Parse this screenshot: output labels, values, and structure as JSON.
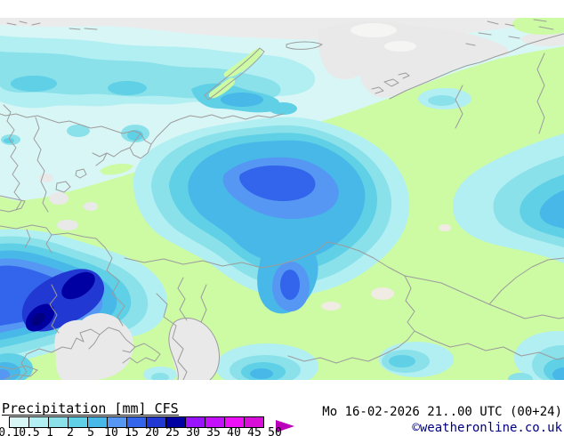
{
  "legend": {
    "title": "Precipitation [mm] CFS",
    "parameter": "Precipitation",
    "unit": "mm",
    "model": "CFS",
    "tick_labels": [
      "0.1",
      "0.5",
      "1",
      "2",
      "5",
      "10",
      "15",
      "20",
      "25",
      "30",
      "35",
      "40",
      "45",
      "50"
    ],
    "segment_colors": [
      "#D9F6F6",
      "#B2EFF2",
      "#8AE1EA",
      "#5FD0E6",
      "#47B8E8",
      "#5597F2",
      "#3365EC",
      "#2138D2",
      "#0000A2",
      "#9914FA",
      "#C312FA",
      "#EE10F6",
      "#D90ED9"
    ],
    "arrow_color": "#BB00BB"
  },
  "footer": {
    "datetime": "Mo 16-02-2026 21..00 UTC (00+24)",
    "copyright": "©weatheronline.co.uk",
    "copyright_color": "#000080"
  },
  "map_palette": {
    "base_trace": "#D9F6F6",
    "band_gray": "#EBEBEB",
    "dry_gray": "#E9E9E9",
    "pale_patch": "#F5F5F3",
    "beige_patch": "#F0ECE4",
    "land_green": "#CCFBA4",
    "p2": "#B2EFF2",
    "p3": "#8AE1EA",
    "p4": "#5FD0E6",
    "p5": "#47B8E8",
    "p6": "#5597F2",
    "p7": "#3365EC",
    "p8": "#2138D2",
    "p9": "#0000A2",
    "p9_core": "#000080",
    "border": "#9C9C9C"
  }
}
